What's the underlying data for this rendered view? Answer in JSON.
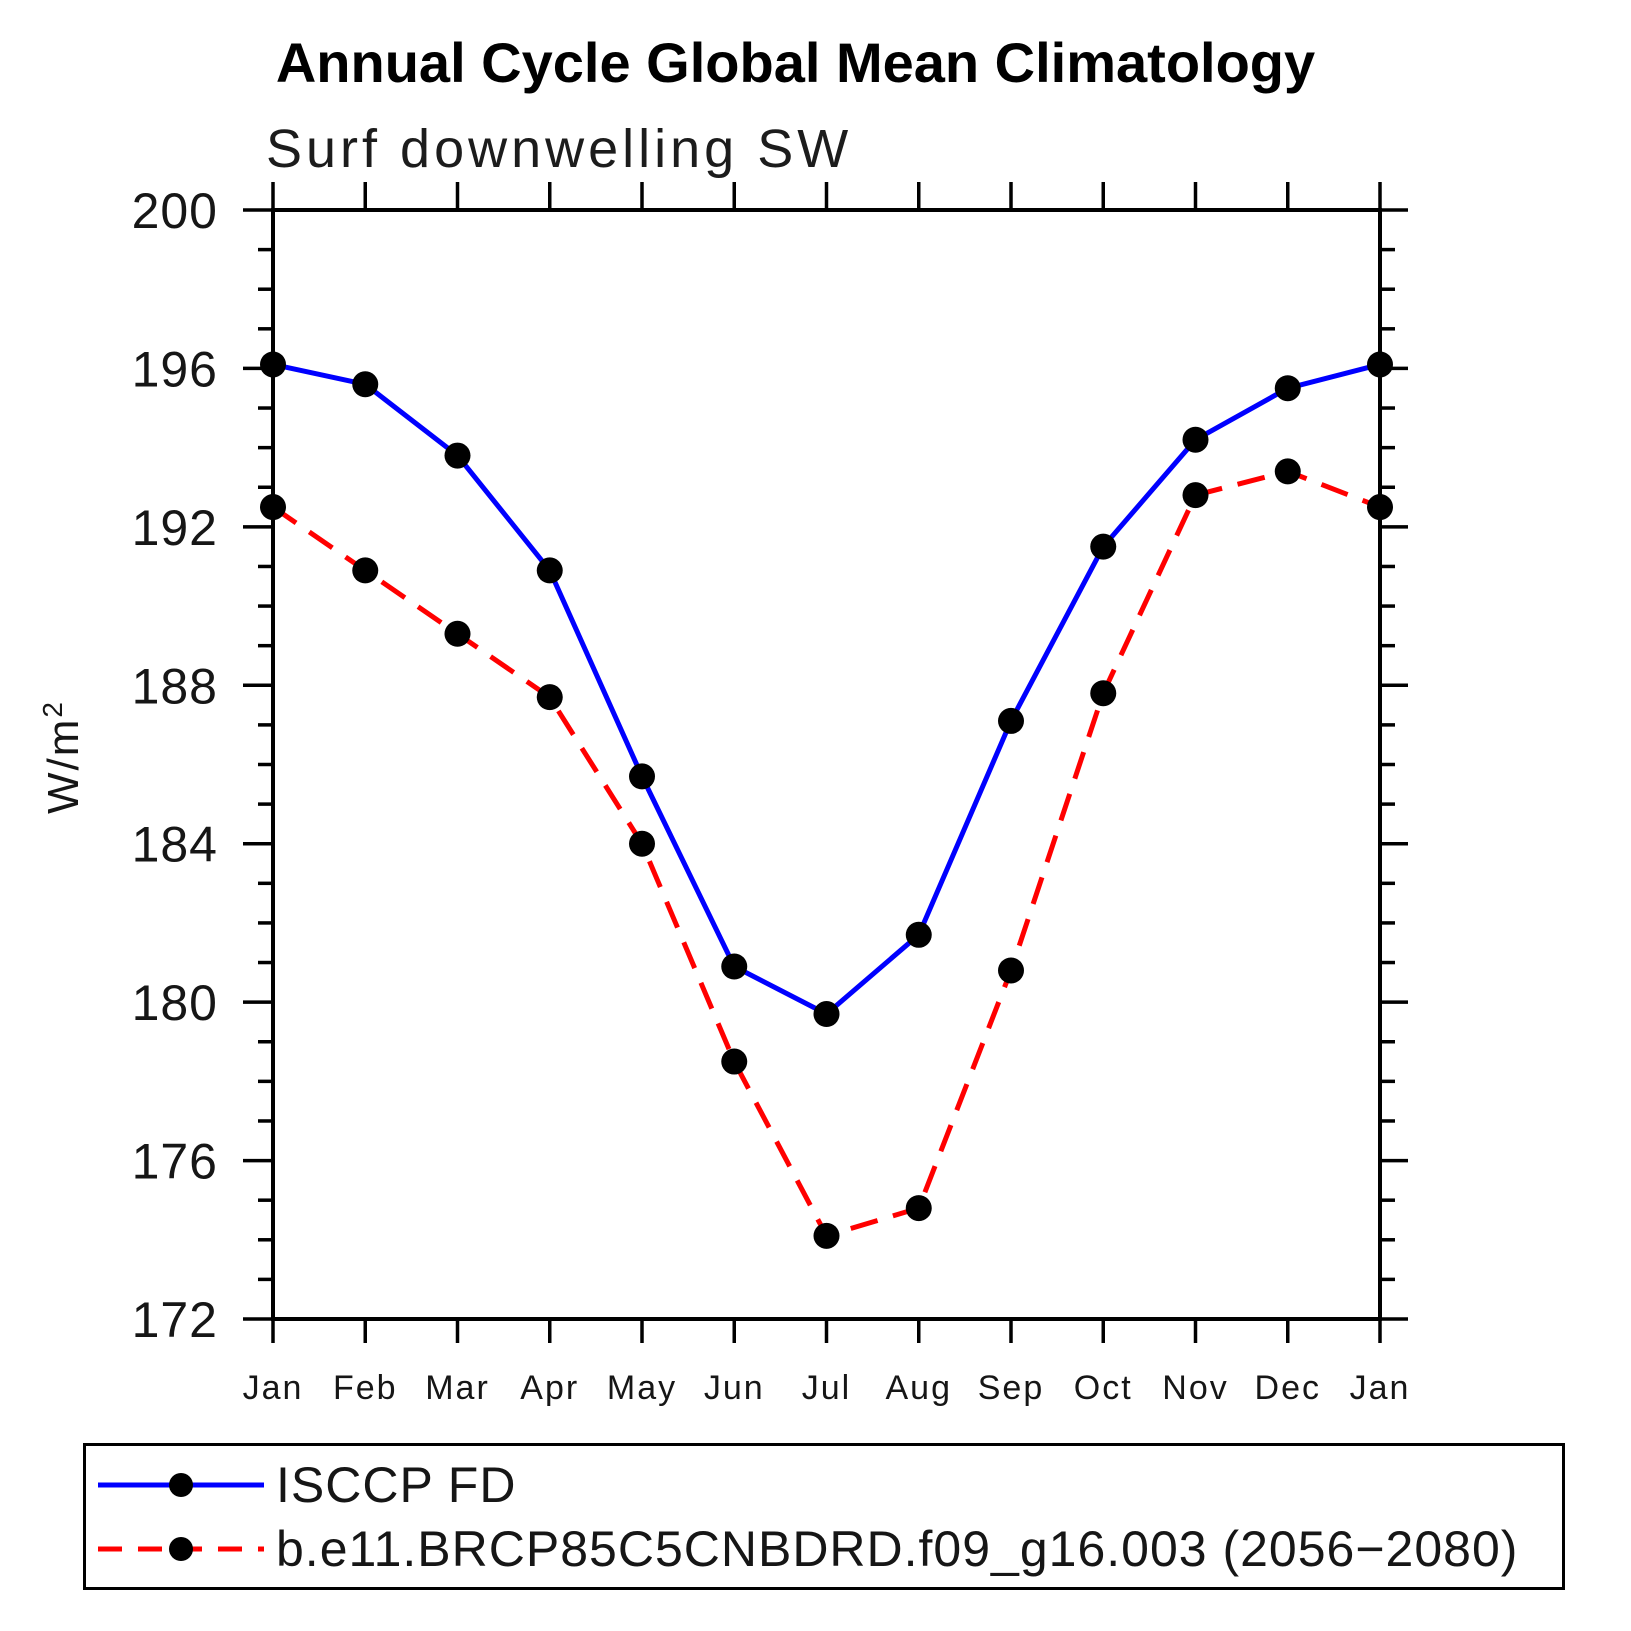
{
  "header": {
    "title": "Annual Cycle Global Mean Climatology",
    "subtitle": "Surf downwelling SW"
  },
  "chart_data": {
    "type": "line",
    "title": "Annual Cycle Global Mean Climatology",
    "subtitle": "Surf downwelling SW",
    "categories": [
      "Jan",
      "Feb",
      "Mar",
      "Apr",
      "May",
      "Jun",
      "Jul",
      "Aug",
      "Sep",
      "Oct",
      "Nov",
      "Dec",
      "Jan"
    ],
    "series": [
      {
        "name": "ISCCP FD",
        "color": "#0000ff",
        "line_style": "solid",
        "marker": "circle",
        "marker_color": "#000000",
        "values": [
          196.1,
          195.6,
          193.8,
          190.9,
          185.7,
          180.9,
          179.7,
          181.7,
          187.1,
          191.5,
          194.2,
          195.5,
          196.1
        ]
      },
      {
        "name": "b.e11.BRCP85C5CNBDRD.f09_g16.003 (2056−2080)",
        "color": "#ff0000",
        "line_style": "dashed",
        "marker": "circle",
        "marker_color": "#000000",
        "values": [
          192.5,
          190.9,
          189.3,
          187.7,
          184.0,
          178.5,
          174.1,
          174.8,
          180.8,
          187.8,
          192.8,
          193.4,
          192.5
        ]
      }
    ],
    "xlabel": "",
    "ylabel": "W/m²",
    "ylabel_base": "W/m",
    "ylabel_exponent": "2",
    "ylim": [
      172,
      200
    ],
    "yticks_major": [
      172,
      176,
      180,
      184,
      188,
      192,
      196,
      200
    ],
    "ytick_minor_step": 1,
    "grid": false,
    "legend_position": "bottom-left-box"
  },
  "legend": {
    "items": [
      {
        "label": "ISCCP FD"
      },
      {
        "label": "b.e11.BRCP85C5CNBDRD.f09_g16.003 (2056−2080)"
      }
    ]
  }
}
